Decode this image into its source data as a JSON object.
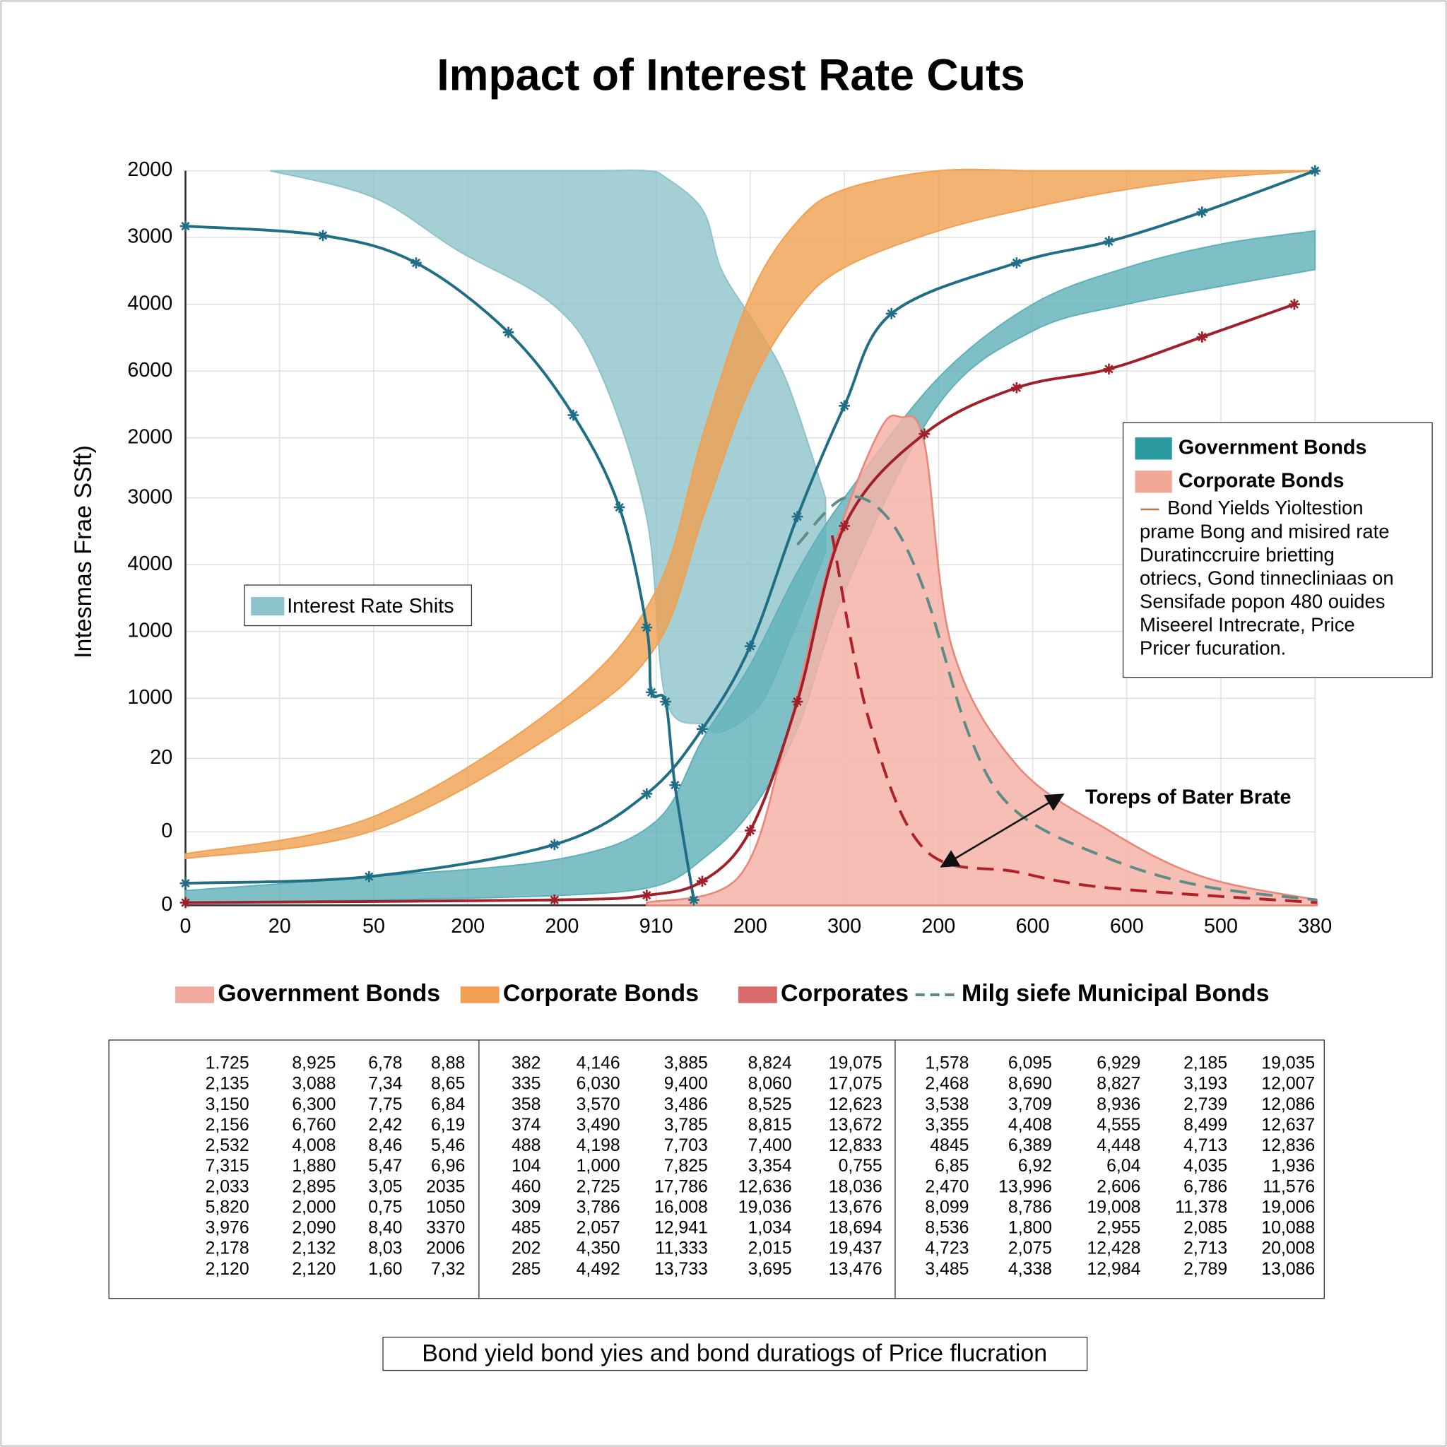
{
  "chart_data": {
    "type": "line",
    "title": "Impact of Interest Rate Cuts",
    "ylabel": "Intesmas Frae SSft)",
    "xlim": [
      0,
      12
    ],
    "ylim": [
      0,
      11
    ],
    "grid": true,
    "xticks": [
      0,
      {
        "value": 1,
        "label": "20"
      },
      {
        "value": 2,
        "label": "50"
      },
      {
        "value": 3,
        "label": "200"
      },
      {
        "value": 4,
        "label": "200"
      },
      {
        "value": 5,
        "label": "910"
      },
      {
        "value": 6,
        "label": "200"
      },
      {
        "value": 7,
        "label": "300"
      },
      {
        "value": 8,
        "label": "200"
      },
      {
        "value": 9,
        "label": "600"
      },
      {
        "value": 10,
        "label": "600"
      },
      {
        "value": 11,
        "label": "500"
      },
      {
        "value": 12,
        "label": "380"
      }
    ],
    "yticks": [
      0,
      {
        "value": 1.1,
        "label": "0"
      },
      {
        "value": 2.2,
        "label": "20"
      },
      {
        "value": 3.1,
        "label": "1000"
      },
      {
        "value": 4.1,
        "label": "1000"
      },
      {
        "value": 5.1,
        "label": "4000"
      },
      {
        "value": 6.1,
        "label": "3000"
      },
      {
        "value": 7,
        "label": "2000"
      },
      {
        "value": 8,
        "label": "6000"
      },
      {
        "value": 9,
        "label": "4000"
      },
      {
        "value": 10,
        "label": "3000"
      },
      {
        "value": 11,
        "label": "2000"
      }
    ],
    "series": [
      {
        "style": "band",
        "color": "#8cc3ca",
        "x": [
          0.9,
          2,
          2.9,
          3.9,
          4.4,
          4.9,
          5.1,
          5.5,
          5.7,
          6.1,
          6.4,
          6.8
        ],
        "values": [
          11,
          11,
          11,
          11,
          11,
          11,
          10.9,
          10.4,
          9.5,
          8.6,
          7.8,
          6.1
        ],
        "lower": [
          11,
          10.6,
          9.8,
          9,
          8,
          5.8,
          3.1,
          2.7,
          2.6,
          3,
          3.9,
          5.3
        ]
      },
      {
        "style": "band",
        "color": "#5fb0b9",
        "x": [
          0,
          2,
          4,
          5,
          5.5,
          6,
          6.5,
          7,
          8,
          9,
          10,
          11,
          12
        ],
        "values": [
          0.22,
          0.43,
          0.7,
          1.26,
          2.5,
          3.6,
          4.99,
          6.1,
          7.9,
          9,
          9.55,
          9.9,
          10.1
        ],
        "lower": [
          0.04,
          0.08,
          0.15,
          0.29,
          0.7,
          1.4,
          2.64,
          4.7,
          7.5,
          8.6,
          9,
          9.27,
          9.52
        ]
      },
      {
        "style": "band",
        "color": "#f0a050",
        "x": [
          0,
          2,
          4,
          5,
          5.5,
          6,
          6.5,
          7,
          8,
          9,
          10,
          11,
          12
        ],
        "values": [
          0.77,
          1.33,
          3.05,
          4.71,
          7.06,
          9.13,
          10.24,
          10.72,
          11,
          11,
          11,
          11,
          11
        ],
        "lower": [
          0.7,
          1.12,
          2.64,
          3.88,
          5.82,
          7.75,
          8.93,
          9.55,
          10.1,
          10.45,
          10.72,
          10.9,
          11
        ]
      },
      {
        "style": "area",
        "color": "#f4b3a8",
        "x": [
          4.9,
          5.88,
          6.38,
          6.87,
          7.36,
          7.6,
          7.85,
          8.14,
          8.83,
          9.81,
          10.8,
          12.02
        ],
        "values": [
          0.04,
          0.43,
          2.5,
          5.27,
          7.07,
          7.31,
          6.92,
          3.88,
          2.1,
          1.12,
          0.43,
          0.08
        ]
      },
      {
        "style": "line",
        "color": "#1f6e86",
        "x": [
          0,
          1.46,
          2.45,
          3.43,
          4.12,
          4.61,
          4.9,
          4.95,
          5.1,
          5.2,
          5.4
        ],
        "values": [
          10.17,
          10.03,
          9.62,
          8.58,
          7.34,
          5.96,
          4.16,
          3.19,
          3.05,
          1.8,
          0.08
        ]
      },
      {
        "style": "line",
        "color": "#1f6e86",
        "x": [
          0,
          1.95,
          3.92,
          4.9,
          5.49,
          6,
          6.5,
          7,
          7.5,
          8.83,
          9.81,
          10.8,
          12
        ],
        "values": [
          0.33,
          0.43,
          0.91,
          1.67,
          2.64,
          3.88,
          5.82,
          7.48,
          8.86,
          9.62,
          9.94,
          10.38,
          11
        ]
      },
      {
        "style": "line",
        "color": "#a0202a",
        "x": [
          0,
          3.92,
          4.9,
          5.49,
          6,
          6.5,
          7,
          7.85,
          8.83,
          9.81,
          10.8,
          11.78
        ],
        "values": [
          0.04,
          0.08,
          0.15,
          0.36,
          1.12,
          3.05,
          5.68,
          7.06,
          7.75,
          8.03,
          8.51,
          9
        ]
      },
      {
        "style": "dashed",
        "color": "#5c8c88",
        "x": [
          6.5,
          7,
          7.45,
          7.85,
          8.34,
          8.83,
          9.81,
          10.8,
          12.02
        ],
        "values": [
          5.4,
          6.1,
          5.82,
          4.71,
          2.5,
          1.4,
          0.7,
          0.29,
          0.08
        ]
      },
      {
        "style": "dashed",
        "color": "#b0202a",
        "x": [
          6.87,
          7.26,
          7.85,
          8.83,
          9.81,
          12.02
        ],
        "values": [
          5.54,
          2.78,
          0.84,
          0.5,
          0.26,
          0.04
        ]
      }
    ],
    "legend_inner": {
      "label": "Interest Rate Shits",
      "color": "#8cc3ca"
    },
    "legend_right": {
      "entries": [
        {
          "label": "Government Bonds",
          "color": "#2a9aa0"
        },
        {
          "label": "Corporate Bonds",
          "color": "#f0a898"
        }
      ],
      "note": [
        "Bond Yields Yioltestion",
        "prame Bong and misired rate",
        "Duratinccruire brietting",
        "otriecs, Gond tinnecliniaas on",
        "Sensifade popon 480 ouides",
        "Miseerel Intrecrate, Price",
        "Pricer fucuration."
      ]
    },
    "legend_bottom": [
      {
        "label": "Government Bonds",
        "color": "#f0aaa0",
        "style": "box"
      },
      {
        "label": "Corporate Bonds",
        "color": "#f0a050",
        "style": "box"
      },
      {
        "label": "Corporates",
        "color": "#d86a6a",
        "style": "box"
      },
      {
        "label": "Milg siefe Municipal Bonds",
        "color": "#5c8c88",
        "style": "dash"
      }
    ],
    "annotation": "Toreps of Bater Brate"
  },
  "table": {
    "groups": [
      [
        [
          "1.725",
          "8,925",
          "6,78",
          "8,88"
        ],
        [
          "2,135",
          "3,088",
          "7,34",
          "8,65"
        ],
        [
          "3,150",
          "6,300",
          "7,75",
          "6,84"
        ],
        [
          "2,156",
          "6,760",
          "2,42",
          "6,19"
        ],
        [
          "2,532",
          "4,008",
          "8,46",
          "5,46"
        ],
        [
          "7,315",
          "1,880",
          "5,47",
          "6,96"
        ],
        [
          "2,033",
          "2,895",
          "3,05",
          "2035"
        ],
        [
          "5,820",
          "2,000",
          "0,75",
          "1050"
        ],
        [
          "3,976",
          "2,090",
          "8,40",
          "3370"
        ],
        [
          "2,178",
          "2,132",
          "8,03",
          "2006"
        ],
        [
          "2,120",
          "2,120",
          "1,60",
          "7,32"
        ]
      ],
      [
        [
          "382",
          "4,146",
          "3,885",
          "8,824",
          "19,075"
        ],
        [
          "335",
          "6,030",
          "9,400",
          "8,060",
          "17,075"
        ],
        [
          "358",
          "3,570",
          "3,486",
          "8,525",
          "12,623"
        ],
        [
          "374",
          "3,490",
          "3,785",
          "8,815",
          "13,672"
        ],
        [
          "488",
          "4,198",
          "7,703",
          "7,400",
          "12,833"
        ],
        [
          "104",
          "1,000",
          "7,825",
          "3,354",
          "0,755"
        ],
        [
          "460",
          "2,725",
          "17,786",
          "12,636",
          "18,036"
        ],
        [
          "309",
          "3,786",
          "16,008",
          "19,036",
          "13,676"
        ],
        [
          "485",
          "2,057",
          "12,941",
          "1,034",
          "18,694"
        ],
        [
          "202",
          "4,350",
          "11,333",
          "2,015",
          "19,437"
        ],
        [
          "285",
          "4,492",
          "13,733",
          "3,695",
          "13,476"
        ]
      ],
      [
        [
          "1,578",
          "6,095",
          "6,929",
          "2,185",
          "19,035"
        ],
        [
          "2,468",
          "8,690",
          "8,827",
          "3,193",
          "12,007"
        ],
        [
          "3,538",
          "3,709",
          "8,936",
          "2,739",
          "12,086"
        ],
        [
          "3,355",
          "4,408",
          "4,555",
          "8,499",
          "12,637"
        ],
        [
          "4845",
          "6,389",
          "4,448",
          "4,713",
          "12,836"
        ],
        [
          "6,85",
          "6,92",
          "6,04",
          "4,035",
          "1,936"
        ],
        [
          "2,470",
          "13,996",
          "2,606",
          "6,786",
          "11,576"
        ],
        [
          "8,099",
          "8,786",
          "19,008",
          "11,378",
          "19,006"
        ],
        [
          "8,536",
          "1,800",
          "2,955",
          "2,085",
          "10,088"
        ],
        [
          "4,723",
          "2,075",
          "12,428",
          "2,713",
          "20,008"
        ],
        [
          "3,485",
          "4,338",
          "12,984",
          "2,789",
          "13,086"
        ]
      ]
    ]
  },
  "caption": "Bond yield bond yies and bond duratiogs of Price flucration"
}
